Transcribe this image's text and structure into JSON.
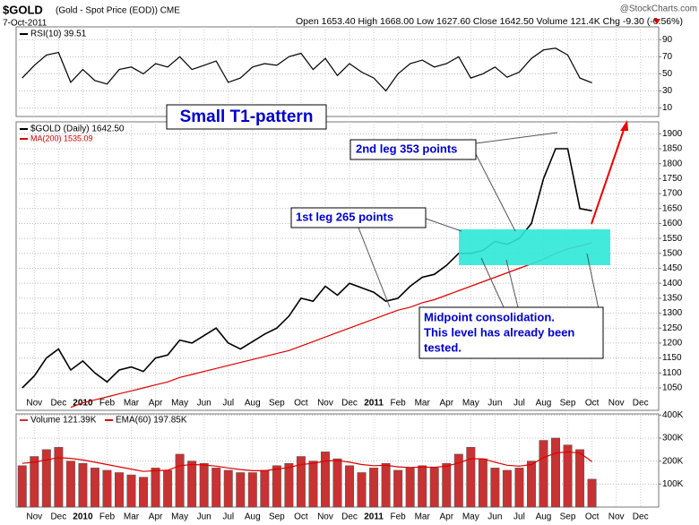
{
  "header": {
    "symbol": "$GOLD",
    "subtitle": "(Gold - Spot Price (EOD)) CME",
    "date": "7-Oct-2011",
    "quote": "Open 1653.40 High 1668.00 Low 1627.60 Close 1642.50 Volume 121.4K Chg -9.30 (-0.56%)",
    "source": "@StockCharts.com"
  },
  "chart_data": [
    {
      "type": "line",
      "ylim": [
        975,
        1940
      ],
      "yticks": [
        1050,
        1100,
        1150,
        1200,
        1250,
        1300,
        1350,
        1400,
        1450,
        1500,
        1550,
        1600,
        1650,
        1700,
        1750,
        1800,
        1850,
        1900
      ],
      "grid": true,
      "categories": [
        null,
        "Nov",
        null,
        "Dec",
        null,
        "2010",
        null,
        "Feb",
        null,
        "Mar",
        null,
        "Apr",
        null,
        "May",
        null,
        "Jun",
        null,
        "Jul",
        null,
        "Aug",
        null,
        "Sep",
        null,
        "Oct",
        null,
        "Nov",
        null,
        "Dec",
        null,
        "2011",
        null,
        "Feb",
        null,
        "Mar",
        null,
        "Apr",
        null,
        "May",
        null,
        "Jun",
        null,
        "Jul",
        null,
        "Aug",
        null,
        "Sep",
        null,
        "Oct",
        null,
        "Nov",
        null,
        "Dec",
        null
      ],
      "series": [
        {
          "name": "$GOLD (Daily) 1642.50",
          "color": "#000000",
          "values": [
            1050,
            1090,
            1150,
            1180,
            1110,
            1140,
            1100,
            1070,
            1110,
            1120,
            1105,
            1150,
            1160,
            1210,
            1200,
            1225,
            1250,
            1200,
            1180,
            1205,
            1230,
            1250,
            1290,
            1350,
            1340,
            1390,
            1360,
            1400,
            1385,
            1370,
            1340,
            1350,
            1390,
            1420,
            1430,
            1460,
            1500,
            1500,
            1510,
            1540,
            1530,
            1550,
            1600,
            1750,
            1850,
            1850,
            1650,
            1642.5,
            null,
            null,
            null,
            null,
            null
          ]
        },
        {
          "name": "MA(200) 1535.09",
          "color": "#dd0000",
          "values": [
            null,
            null,
            null,
            null,
            985,
            1000,
            1010,
            1020,
            1030,
            1040,
            1050,
            1060,
            1070,
            1085,
            1095,
            1105,
            1115,
            1125,
            1135,
            1145,
            1155,
            1165,
            1175,
            1190,
            1205,
            1220,
            1235,
            1250,
            1265,
            1280,
            1295,
            1310,
            1320,
            1335,
            1345,
            1360,
            1375,
            1390,
            1405,
            1420,
            1435,
            1450,
            1465,
            1480,
            1500,
            1515,
            1525,
            1535.09,
            null,
            null,
            null,
            null,
            null
          ]
        }
      ],
      "annotations": {
        "pattern": "Small T1-pattern",
        "leg2": "2nd leg 353 points",
        "leg1": "1st leg 265 points",
        "note": [
          "Midpoint consolidation.",
          "This level has already been",
          "tested."
        ]
      }
    },
    {
      "type": "line",
      "ylim": [
        0,
        105
      ],
      "yticks": [
        10,
        30,
        50,
        70,
        90
      ],
      "grid": true,
      "series": [
        {
          "name": "RSI(10) 39.51",
          "color": "#000000",
          "values": [
            45,
            60,
            72,
            75,
            40,
            55,
            42,
            38,
            55,
            58,
            50,
            62,
            58,
            70,
            55,
            60,
            65,
            40,
            45,
            58,
            62,
            60,
            70,
            74,
            55,
            68,
            48,
            62,
            52,
            45,
            30,
            50,
            62,
            66,
            58,
            62,
            70,
            45,
            50,
            58,
            46,
            52,
            68,
            78,
            80,
            72,
            45,
            39.51,
            null,
            null,
            null,
            null,
            null
          ]
        }
      ]
    },
    {
      "type": "bar",
      "ylim": [
        0,
        405000
      ],
      "yticks": [
        {
          "value": 100000,
          "label": "100K"
        },
        {
          "value": 200000,
          "label": "200K"
        },
        {
          "value": 300000,
          "label": "300K"
        },
        {
          "value": 400000,
          "label": "400K"
        }
      ],
      "grid": true,
      "categories": [
        null,
        "Nov",
        null,
        "Dec",
        null,
        "2010",
        null,
        "Feb",
        null,
        "Mar",
        null,
        "Apr",
        null,
        "May",
        null,
        "Jun",
        null,
        "Jul",
        null,
        "Aug",
        null,
        "Sep",
        null,
        "Oct",
        null,
        "Nov",
        null,
        "Dec",
        null,
        "2011",
        null,
        "Feb",
        null,
        "Mar",
        null,
        "Apr",
        null,
        "May",
        null,
        "Jun",
        null,
        "Jul",
        null,
        "Aug",
        null,
        "Sep",
        null,
        "Oct",
        null,
        "Nov",
        null,
        "Dec",
        null
      ],
      "series": [
        {
          "name": "Volume 121.39K",
          "color": "#c83232",
          "values": [
            180000,
            220000,
            250000,
            260000,
            200000,
            190000,
            170000,
            160000,
            150000,
            140000,
            130000,
            170000,
            160000,
            230000,
            200000,
            190000,
            170000,
            160000,
            150000,
            150000,
            160000,
            180000,
            190000,
            220000,
            200000,
            240000,
            210000,
            180000,
            150000,
            170000,
            190000,
            160000,
            170000,
            180000,
            170000,
            190000,
            230000,
            260000,
            210000,
            170000,
            160000,
            170000,
            200000,
            290000,
            300000,
            270000,
            250000,
            121390,
            null,
            null,
            null,
            null,
            null
          ]
        },
        {
          "name": "EMA(60) 197.85K",
          "color": "#dd0000",
          "type": "line",
          "values": [
            190000,
            195000,
            205000,
            215000,
            212000,
            205000,
            195000,
            185000,
            175000,
            165000,
            155000,
            158000,
            160000,
            180000,
            185000,
            183000,
            178000,
            170000,
            163000,
            158000,
            158000,
            165000,
            172000,
            185000,
            190000,
            200000,
            203000,
            195000,
            185000,
            180000,
            182000,
            175000,
            172000,
            174000,
            173000,
            178000,
            192000,
            210000,
            210000,
            195000,
            182000,
            178000,
            185000,
            215000,
            235000,
            240000,
            235000,
            197850,
            null,
            null,
            null,
            null,
            null
          ]
        }
      ]
    }
  ]
}
